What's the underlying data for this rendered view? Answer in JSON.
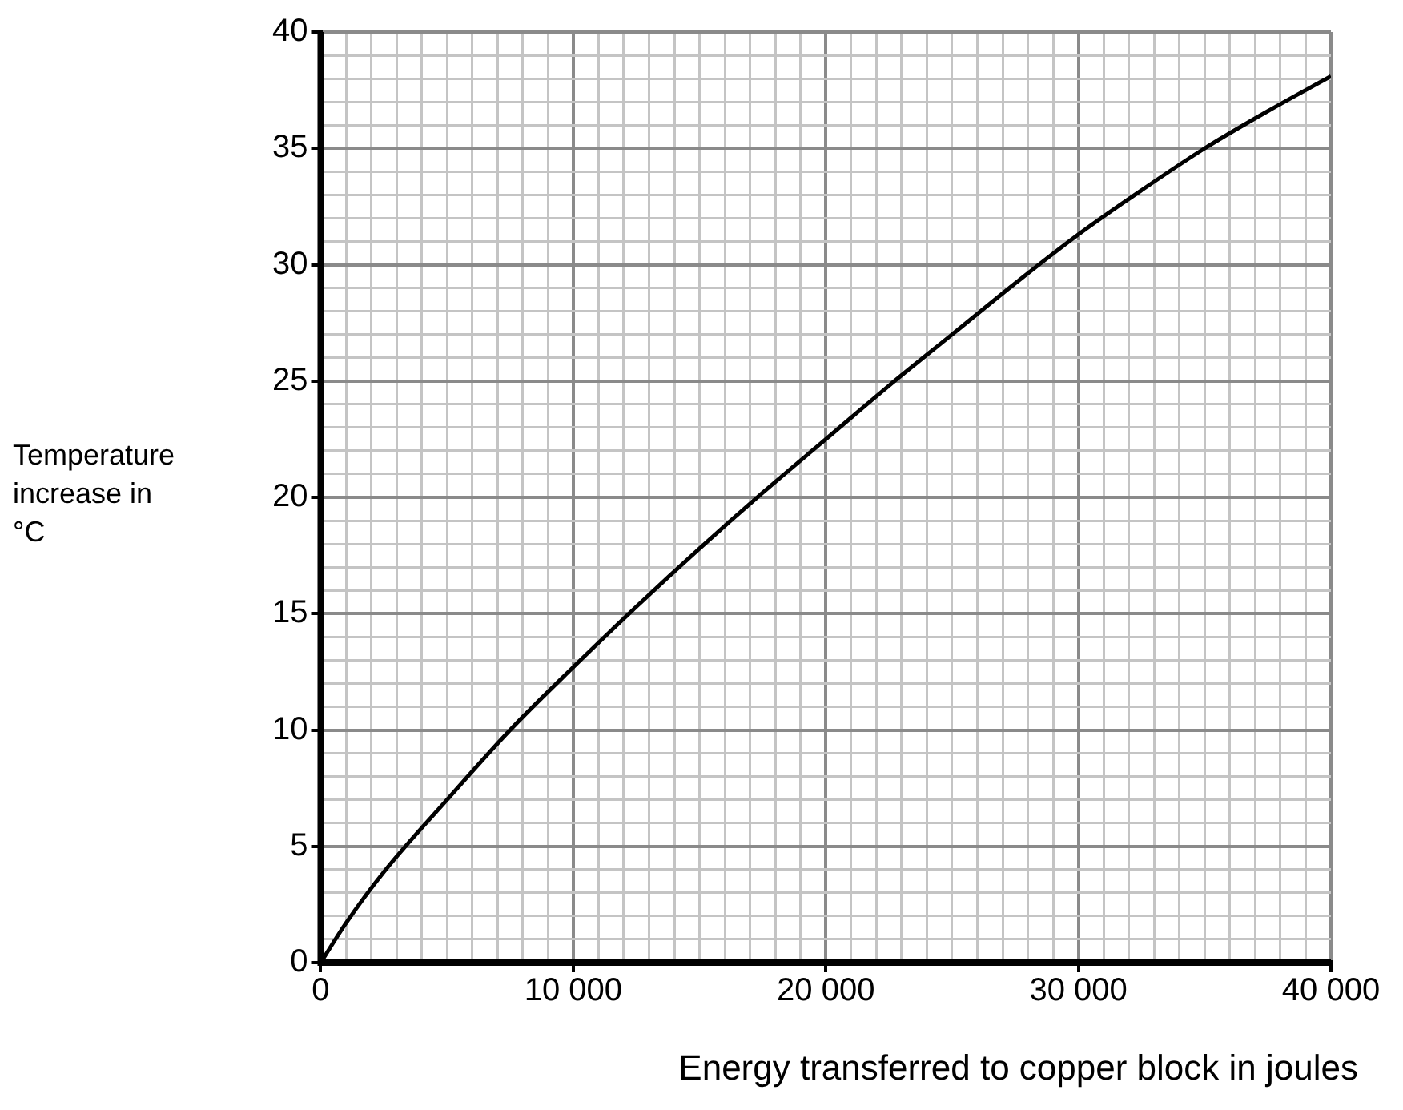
{
  "chart_data": {
    "type": "line",
    "xlabel": "Energy transferred to copper block in joules",
    "ylabel": "Temperature increase in °C",
    "x": [
      0,
      1000,
      2500,
      5000,
      7500,
      10000,
      12500,
      15000,
      17500,
      20000,
      22500,
      25000,
      27500,
      30000,
      32500,
      35000,
      37500,
      40000
    ],
    "series": [
      {
        "color": "#000000",
        "values": [
          0,
          1.7,
          3.9,
          7.0,
          10.0,
          12.7,
          15.3,
          17.8,
          20.2,
          22.5,
          24.8,
          27.0,
          29.2,
          31.3,
          33.2,
          35.0,
          36.6,
          38.1
        ]
      }
    ],
    "xlim": [
      0,
      40000
    ],
    "ylim": [
      0,
      40
    ],
    "xticks": [
      0,
      {
        "value": 1000,
        "label": null
      },
      {
        "value": 2000,
        "label": null
      },
      {
        "value": 3000,
        "label": null
      },
      {
        "value": 4000,
        "label": null
      },
      {
        "value": 5000,
        "label": null
      },
      {
        "value": 6000,
        "label": null
      },
      {
        "value": 7000,
        "label": null
      },
      {
        "value": 8000,
        "label": null
      },
      {
        "value": 9000,
        "label": null
      },
      {
        "value": 10000,
        "label": "10 000"
      },
      {
        "value": 11000,
        "label": null
      },
      {
        "value": 12000,
        "label": null
      },
      {
        "value": 13000,
        "label": null
      },
      {
        "value": 14000,
        "label": null
      },
      {
        "value": 15000,
        "label": null
      },
      {
        "value": 16000,
        "label": null
      },
      {
        "value": 17000,
        "label": null
      },
      {
        "value": 18000,
        "label": null
      },
      {
        "value": 19000,
        "label": null
      },
      {
        "value": 20000,
        "label": "20 000"
      },
      {
        "value": 21000,
        "label": null
      },
      {
        "value": 22000,
        "label": null
      },
      {
        "value": 23000,
        "label": null
      },
      {
        "value": 24000,
        "label": null
      },
      {
        "value": 25000,
        "label": null
      },
      {
        "value": 26000,
        "label": null
      },
      {
        "value": 27000,
        "label": null
      },
      {
        "value": 28000,
        "label": null
      },
      {
        "value": 29000,
        "label": null
      },
      {
        "value": 30000,
        "label": "30 000"
      },
      {
        "value": 31000,
        "label": null
      },
      {
        "value": 32000,
        "label": null
      },
      {
        "value": 33000,
        "label": null
      },
      {
        "value": 34000,
        "label": null
      },
      {
        "value": 35000,
        "label": null
      },
      {
        "value": 36000,
        "label": null
      },
      {
        "value": 37000,
        "label": null
      },
      {
        "value": 38000,
        "label": null
      },
      {
        "value": 39000,
        "label": null
      },
      {
        "value": 40000,
        "label": "40 000"
      }
    ],
    "yticks": [
      0,
      {
        "value": 1,
        "label": null
      },
      {
        "value": 2,
        "label": null
      },
      {
        "value": 3,
        "label": null
      },
      {
        "value": 4,
        "label": null
      },
      5,
      {
        "value": 6,
        "label": null
      },
      {
        "value": 7,
        "label": null
      },
      {
        "value": 8,
        "label": null
      },
      {
        "value": 9,
        "label": null
      },
      10,
      {
        "value": 11,
        "label": null
      },
      {
        "value": 12,
        "label": null
      },
      {
        "value": 13,
        "label": null
      },
      {
        "value": 14,
        "label": null
      },
      15,
      {
        "value": 16,
        "label": null
      },
      {
        "value": 17,
        "label": null
      },
      {
        "value": 18,
        "label": null
      },
      {
        "value": 19,
        "label": null
      },
      20,
      {
        "value": 21,
        "label": null
      },
      {
        "value": 22,
        "label": null
      },
      {
        "value": 23,
        "label": null
      },
      {
        "value": 24,
        "label": null
      },
      25,
      {
        "value": 26,
        "label": null
      },
      {
        "value": 27,
        "label": null
      },
      {
        "value": 28,
        "label": null
      },
      {
        "value": 29,
        "label": null
      },
      30,
      {
        "value": 31,
        "label": null
      },
      {
        "value": 32,
        "label": null
      },
      {
        "value": 33,
        "label": null
      },
      {
        "value": 34,
        "label": null
      },
      35,
      {
        "value": 36,
        "label": null
      },
      {
        "value": 37,
        "label": null
      },
      {
        "value": 38,
        "label": null
      },
      {
        "value": 39,
        "label": null
      },
      40
    ],
    "grid": true,
    "legend": false,
    "marker": "none",
    "line_style": "solid"
  }
}
